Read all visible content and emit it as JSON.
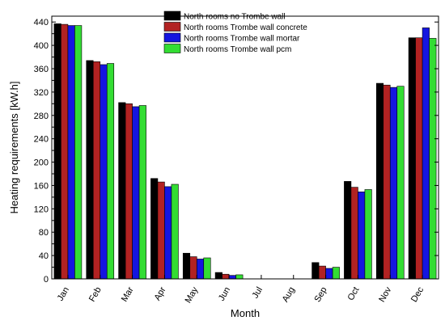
{
  "chart_data": {
    "type": "bar",
    "title": "",
    "xlabel": "Month",
    "ylabel": "Heating requirements [kW.h]",
    "categories": [
      "Jan",
      "Feb",
      "Mar",
      "Apr",
      "May",
      "Jun",
      "Jul",
      "Aug",
      "Sep",
      "Oct",
      "Nov",
      "Dec"
    ],
    "ylim": [
      0,
      450
    ],
    "yticks": [
      0,
      40,
      80,
      120,
      160,
      200,
      240,
      280,
      320,
      360,
      400,
      440
    ],
    "legend_position": "top-center",
    "grid": false,
    "series": [
      {
        "name": "North rooms no Trombe wall",
        "color": "#000000",
        "values": [
          437,
          374,
          302,
          172,
          44,
          11,
          0,
          0,
          28,
          167,
          335,
          413
        ]
      },
      {
        "name": "North rooms Trombe wall concrete",
        "color": "#b22222",
        "values": [
          436,
          372,
          300,
          166,
          38,
          8,
          0,
          0,
          22,
          157,
          332,
          413
        ]
      },
      {
        "name": "North rooms Trombe wall mortar",
        "color": "#1515e0",
        "values": [
          434,
          367,
          295,
          158,
          34,
          6,
          0,
          0,
          18,
          149,
          328,
          430
        ]
      },
      {
        "name": "North rooms Trombe wall pcm",
        "color": "#33dd33",
        "values": [
          434,
          369,
          297,
          162,
          36,
          7,
          0,
          0,
          20,
          153,
          330,
          412
        ]
      }
    ]
  }
}
